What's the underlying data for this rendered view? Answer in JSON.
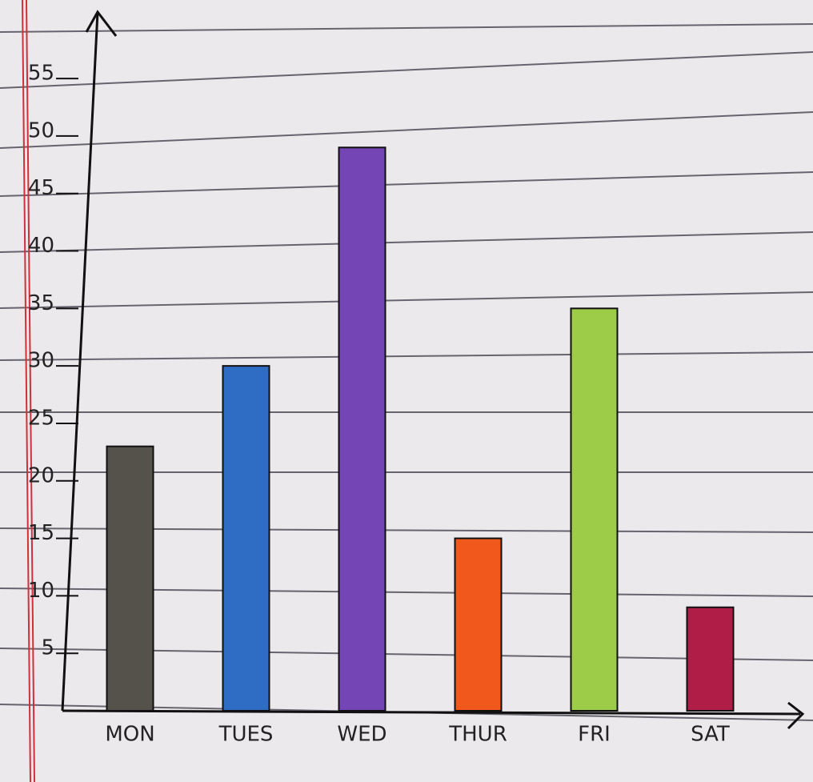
{
  "chart_data": {
    "type": "bar",
    "categories": [
      "MON",
      "TUES",
      "WED",
      "THUR",
      "FRI",
      "SAT"
    ],
    "values": [
      23,
      30,
      49,
      15,
      35,
      9
    ],
    "colors": [
      "#55524c",
      "#2f6dc4",
      "#7445b5",
      "#f0581c",
      "#9ccc48",
      "#b01e48"
    ],
    "ylim": [
      0,
      58
    ],
    "yticks": [
      5,
      10,
      15,
      20,
      25,
      30,
      35,
      40,
      45,
      50,
      55
    ]
  }
}
